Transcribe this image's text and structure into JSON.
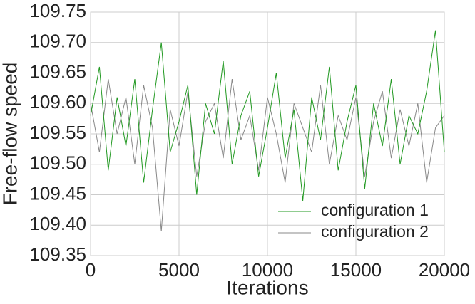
{
  "chart_data": {
    "type": "line",
    "xlabel": "Iterations",
    "ylabel": "Free-flow speed",
    "x": [
      0,
      500,
      1000,
      1500,
      2000,
      2500,
      3000,
      3500,
      4000,
      4500,
      5000,
      5500,
      6000,
      6500,
      7000,
      7500,
      8000,
      8500,
      9000,
      9500,
      10000,
      10500,
      11000,
      11500,
      12000,
      12500,
      13000,
      13500,
      14000,
      14500,
      15000,
      15500,
      16000,
      16500,
      17000,
      17500,
      18000,
      18500,
      19000,
      19500,
      20000
    ],
    "series": [
      {
        "name": "configuration 1",
        "color": "#229922",
        "values": [
          109.58,
          109.66,
          109.49,
          109.61,
          109.53,
          109.64,
          109.47,
          109.59,
          109.7,
          109.52,
          109.57,
          109.63,
          109.45,
          109.6,
          109.55,
          109.67,
          109.5,
          109.58,
          109.62,
          109.48,
          109.56,
          109.65,
          109.51,
          109.59,
          109.44,
          109.61,
          109.54,
          109.66,
          109.49,
          109.57,
          109.63,
          109.46,
          109.6,
          109.53,
          109.64,
          109.5,
          109.58,
          109.55,
          109.62,
          109.72,
          109.52
        ]
      },
      {
        "name": "configuration 2",
        "color": "#888888",
        "values": [
          109.6,
          109.52,
          109.64,
          109.55,
          109.61,
          109.5,
          109.63,
          109.56,
          109.39,
          109.59,
          109.53,
          109.62,
          109.48,
          109.57,
          109.6,
          109.51,
          109.64,
          109.54,
          109.58,
          109.49,
          109.61,
          109.55,
          109.47,
          109.6,
          109.56,
          109.52,
          109.63,
          109.5,
          109.58,
          109.54,
          109.61,
          109.48,
          109.57,
          109.62,
          109.51,
          109.59,
          109.53,
          109.6,
          109.47,
          109.56,
          109.58
        ]
      }
    ],
    "xlim": [
      0,
      20000
    ],
    "xticks": [
      0,
      5000,
      10000,
      15000,
      20000
    ],
    "ylim": [
      109.35,
      109.75
    ],
    "yticks": [
      109.35,
      {
        "value": 109.4,
        "label": "109.40"
      },
      109.45,
      {
        "value": 109.5,
        "label": "109.50"
      },
      109.55,
      {
        "value": 109.6,
        "label": "109.60"
      },
      109.65,
      {
        "value": 109.7,
        "label": "109.70"
      },
      109.75
    ],
    "grid": true,
    "legend": "lower right"
  }
}
